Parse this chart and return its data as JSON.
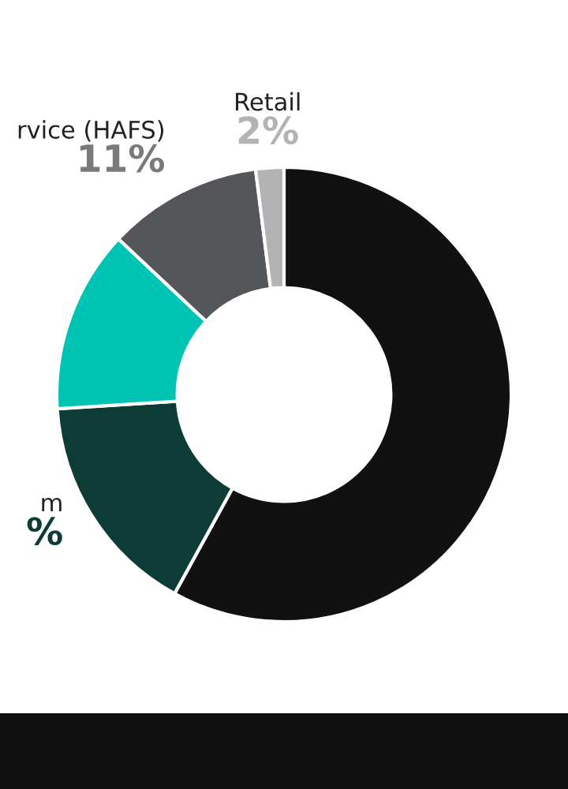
{
  "chart_data": {
    "type": "donut",
    "categories": [
      null,
      "m",
      null,
      "rvice (HAFS)",
      "Retail"
    ],
    "values": [
      58,
      16,
      13,
      11,
      2
    ],
    "value_labels": [
      null,
      "%",
      null,
      "11%",
      "2%"
    ],
    "colors": [
      "#111111",
      "#0d3b36",
      "#00c4b3",
      "#55565a",
      "#b3b3b3"
    ]
  }
}
